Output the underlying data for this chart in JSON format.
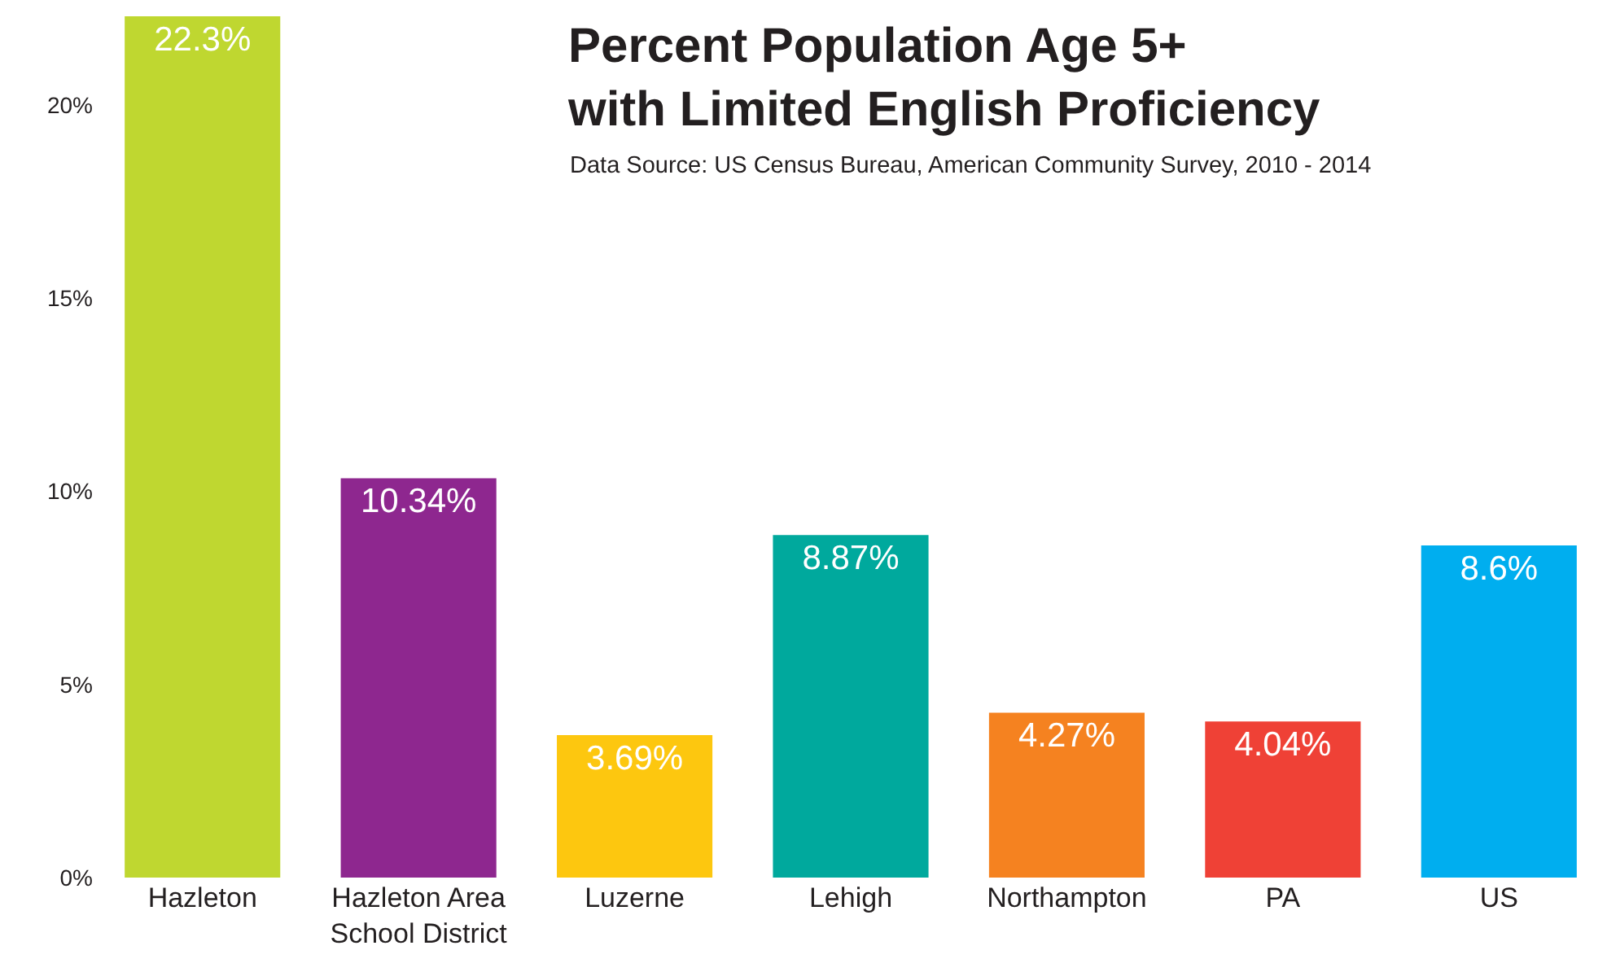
{
  "chart_data": {
    "type": "bar",
    "title": "Percent Population Age 5+\nwith Limited English Proficiency",
    "annotations": [
      "Data Source: US Census Bureau, American Community Survey, 2010 - 2014"
    ],
    "categories": [
      "Hazleton",
      "Hazleton Area\nSchool District",
      "Luzerne",
      "Lehigh",
      "Northampton",
      "PA",
      "US"
    ],
    "values": [
      22.3,
      10.34,
      3.69,
      8.87,
      4.27,
      4.04,
      8.6
    ],
    "colors": [
      "#bfd730",
      "#8e278f",
      "#fdc70f",
      "#00a99d",
      "#f58220",
      "#ef4136",
      "#00aeef"
    ],
    "value_labels": [
      "22.3%",
      "10.34%",
      "3.69%",
      "8.87%",
      "4.27%",
      "4.04%",
      "8.6%"
    ],
    "ylim": [
      0,
      22.3
    ],
    "yticks": [
      {
        "value": 0,
        "label": "0%"
      },
      {
        "value": 5,
        "label": "5%"
      },
      {
        "value": 10,
        "label": "10%"
      },
      {
        "value": 15,
        "label": "15%"
      },
      {
        "value": 20,
        "label": "20%"
      }
    ],
    "data_labels": false
  }
}
